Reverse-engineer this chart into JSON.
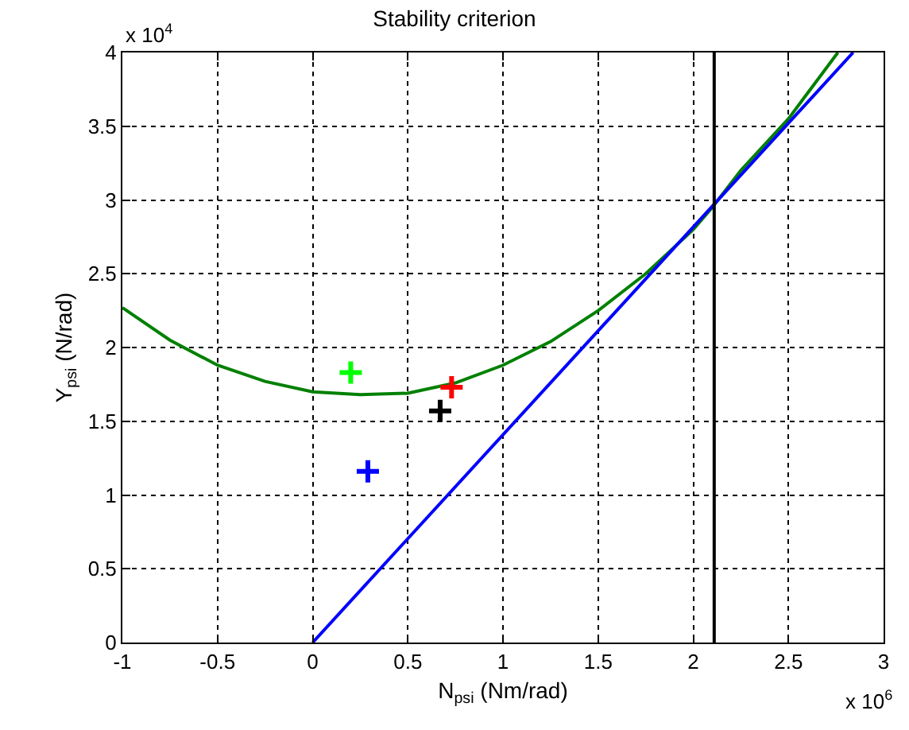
{
  "chart_data": {
    "type": "line",
    "title": "Stability criterion",
    "xlabel": "N$_{psi}$ (Nm/rad)",
    "ylabel": "Y$_{psi}$ (N/rad)",
    "annotations": [
      "x 10$^{4}$",
      "x 10$^{6}$"
    ],
    "xlim": [
      -1,
      3
    ],
    "xticks": [
      -1,
      -0.5,
      0,
      0.5,
      1,
      1.5,
      2,
      2.5,
      3
    ],
    "ylim": [
      0,
      4
    ],
    "yticks": [
      0,
      0.5,
      1,
      1.5,
      2,
      2.5,
      3,
      3.5,
      4
    ],
    "grid": true,
    "series": [
      {
        "color": "#008000",
        "line_style": "solid",
        "x": [
          -1,
          -0.75,
          -0.5,
          -0.25,
          0,
          0.25,
          0.5,
          0.75,
          1,
          1.25,
          1.5,
          1.75,
          2,
          2.1,
          2.25,
          2.5,
          2.76
        ],
        "values": [
          2.27,
          2.05,
          1.88,
          1.77,
          1.7,
          1.68,
          1.69,
          1.76,
          1.88,
          2.04,
          2.25,
          2.5,
          2.8,
          2.95,
          3.2,
          3.55,
          4
        ]
      },
      {
        "color": "#0000ff",
        "line_style": "solid",
        "x": [
          0,
          2.84
        ],
        "values": [
          0,
          4
        ]
      },
      {
        "type": "scatter",
        "color": "#00ff00",
        "marker": "cross",
        "x": [
          0.2
        ],
        "values": [
          1.83
        ]
      },
      {
        "type": "scatter",
        "color": "#ff0000",
        "marker": "cross",
        "x": [
          0.73
        ],
        "values": [
          1.73
        ]
      },
      {
        "type": "scatter",
        "color": "#000000",
        "marker": "cross",
        "x": [
          0.67
        ],
        "values": [
          1.57
        ]
      },
      {
        "type": "scatter",
        "color": "#0000ff",
        "marker": "cross",
        "x": [
          0.29
        ],
        "values": [
          1.16
        ]
      }
    ],
    "ref_lines": [
      {
        "axis": "x",
        "value": 2.11,
        "color": "#000000",
        "line_style": "solid"
      }
    ]
  }
}
